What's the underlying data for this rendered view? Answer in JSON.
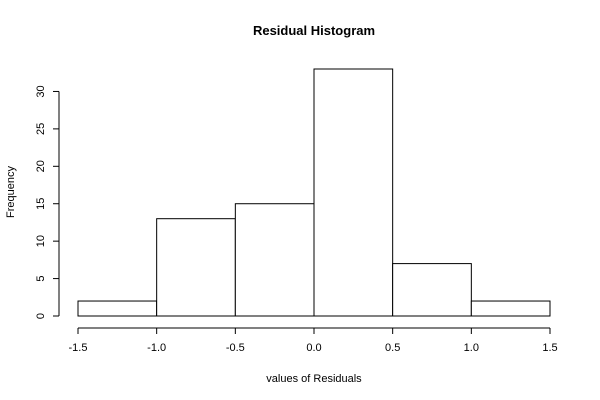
{
  "chart_data": {
    "type": "bar",
    "title": "Residual Histogram",
    "xlabel": "values of Residuals",
    "ylabel": "Frequency",
    "bins": [
      {
        "from": -1.5,
        "to": -1.0,
        "count": 2
      },
      {
        "from": -1.0,
        "to": -0.5,
        "count": 13
      },
      {
        "from": -0.5,
        "to": 0.0,
        "count": 15
      },
      {
        "from": 0.0,
        "to": 0.5,
        "count": 33
      },
      {
        "from": 0.5,
        "to": 1.0,
        "count": 7
      },
      {
        "from": 1.0,
        "to": 1.5,
        "count": 2
      }
    ],
    "xlim": [
      -1.5,
      1.5
    ],
    "ylim": [
      0,
      33
    ],
    "x_ticks": [
      -1.5,
      -1.0,
      -0.5,
      0.0,
      0.5,
      1.0,
      1.5
    ],
    "x_tick_labels": [
      "-1.5",
      "-1.0",
      "-0.5",
      "0.0",
      "0.5",
      "1.0",
      "1.5"
    ],
    "y_ticks": [
      0,
      5,
      10,
      15,
      20,
      25,
      30
    ],
    "y_tick_labels": [
      "0",
      "5",
      "10",
      "15",
      "20",
      "25",
      "30"
    ],
    "grid": false,
    "bar_fill": "#ffffff",
    "bar_stroke": "#000000"
  }
}
